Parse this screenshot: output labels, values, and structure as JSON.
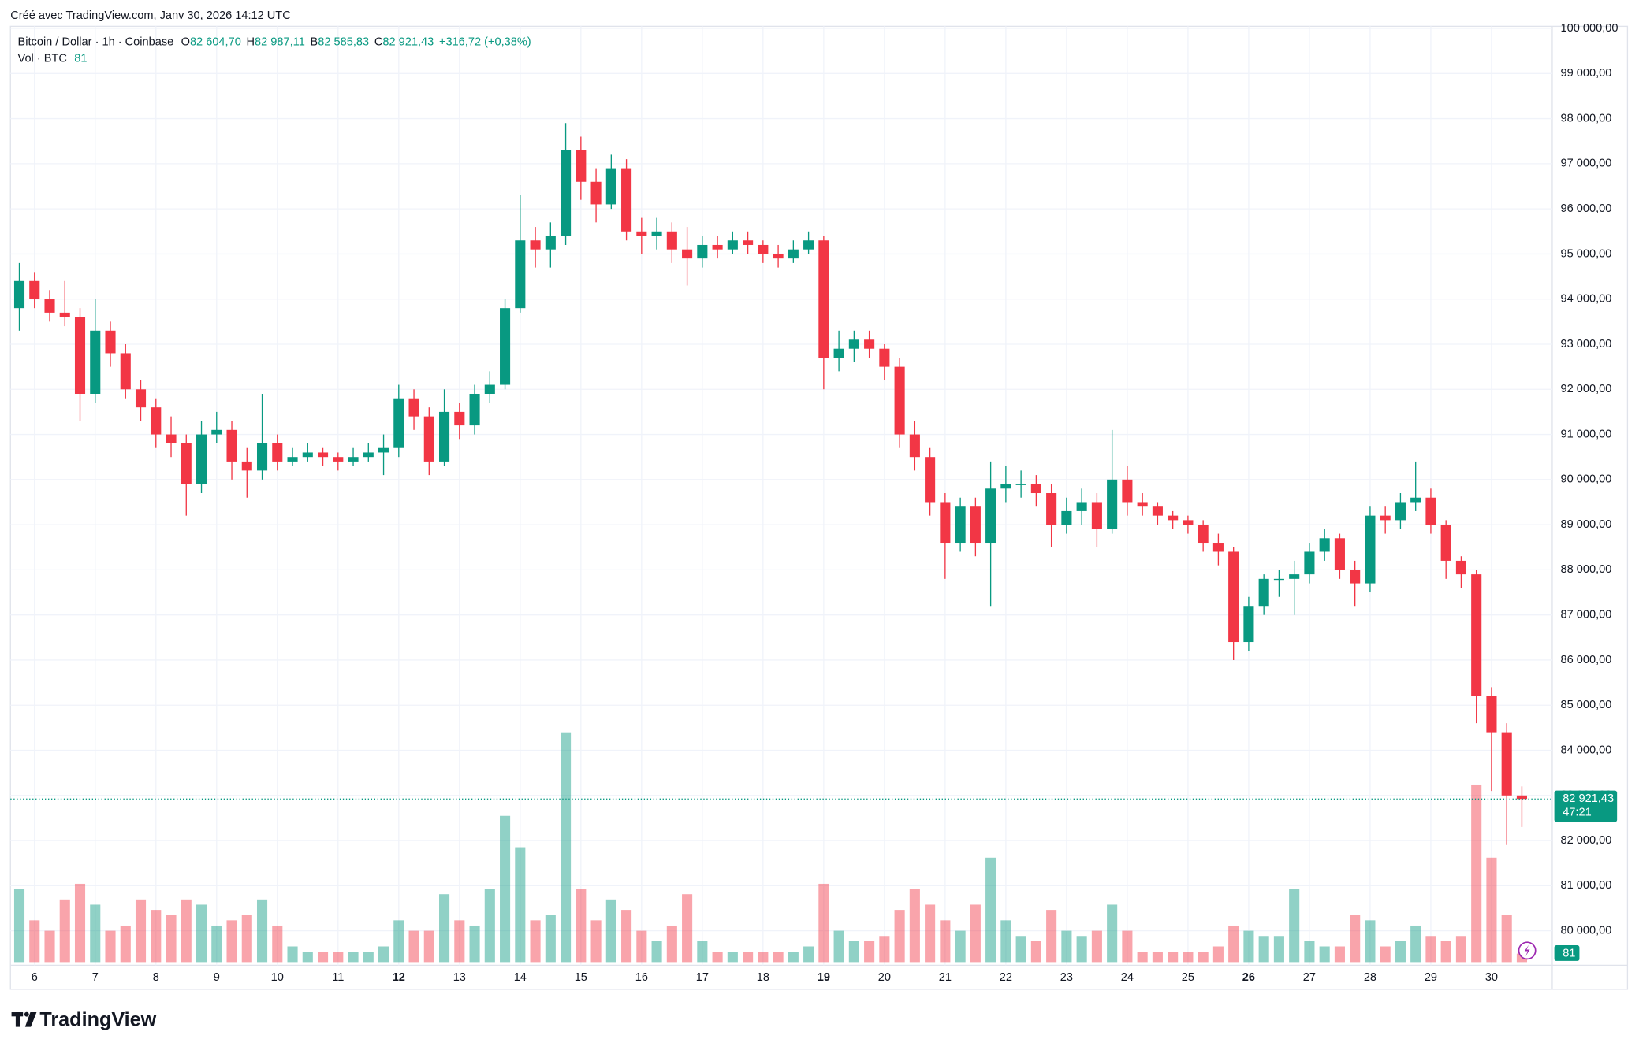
{
  "header": "Créé avec TradingView.com, Janv 30, 2026 14:12 UTC",
  "chart_data": {
    "type": "candlestick",
    "legend": {
      "symbol": "Bitcoin / Dollar · 1h · Coinbase",
      "open_label": "O",
      "open": "82 604,70",
      "high_label": "H",
      "high": "82 987,11",
      "low_label": "B",
      "low": "82 585,83",
      "close_label": "C",
      "close": "82 921,43",
      "change": "+316,72 (+0,38%)",
      "volume_label": "Vol · BTC"
    },
    "up_color": "#089981",
    "down_color": "#f23645",
    "grid": true,
    "xlim": [
      5.604,
      31.0
    ],
    "xticks": [
      6,
      7,
      8,
      9,
      10,
      11,
      12,
      13,
      14,
      15,
      16,
      17,
      18,
      19,
      20,
      21,
      22,
      23,
      24,
      25,
      26,
      27,
      28,
      29,
      30
    ],
    "bold_xticks": [
      12,
      19,
      26
    ],
    "ylim": [
      79306,
      100046
    ],
    "yticks": [
      {
        "value": 80000,
        "label": "80 000,00"
      },
      {
        "value": 81000,
        "label": "81 000,00"
      },
      {
        "value": 82000,
        "label": "82 000,00"
      },
      {
        "value": 83000,
        "label": "83 000,00"
      },
      {
        "value": 84000,
        "label": "84 000,00"
      },
      {
        "value": 85000,
        "label": "85 000,00"
      },
      {
        "value": 86000,
        "label": "86 000,00"
      },
      {
        "value": 87000,
        "label": "87 000,00"
      },
      {
        "value": 88000,
        "label": "88 000,00"
      },
      {
        "value": 89000,
        "label": "89 000,00"
      },
      {
        "value": 90000,
        "label": "90 000,00"
      },
      {
        "value": 91000,
        "label": "91 000,00"
      },
      {
        "value": 92000,
        "label": "92 000,00"
      },
      {
        "value": 93000,
        "label": "93 000,00"
      },
      {
        "value": 94000,
        "label": "94 000,00"
      },
      {
        "value": 95000,
        "label": "95 000,00"
      },
      {
        "value": 96000,
        "label": "96 000,00"
      },
      {
        "value": 97000,
        "label": "97 000,00"
      },
      {
        "value": 98000,
        "label": "98 000,00"
      },
      {
        "value": 99000,
        "label": "99 000,00"
      },
      {
        "value": 100000,
        "label": "100 000,00"
      }
    ],
    "x": [
      5.75,
      6,
      6.25,
      6.5,
      6.75,
      7,
      7.25,
      7.5,
      7.75,
      8,
      8.25,
      8.5,
      8.75,
      9,
      9.25,
      9.5,
      9.75,
      10,
      10.25,
      10.5,
      10.75,
      11,
      11.25,
      11.5,
      11.75,
      12,
      12.25,
      12.5,
      12.75,
      13,
      13.25,
      13.5,
      13.75,
      14,
      14.25,
      14.5,
      14.75,
      15,
      15.25,
      15.5,
      15.75,
      16,
      16.25,
      16.5,
      16.75,
      17,
      17.25,
      17.5,
      17.75,
      18,
      18.25,
      18.5,
      18.75,
      19,
      19.25,
      19.5,
      19.75,
      20,
      20.25,
      20.5,
      20.75,
      21,
      21.25,
      21.5,
      21.75,
      22,
      22.25,
      22.5,
      22.75,
      23,
      23.25,
      23.5,
      23.75,
      24,
      24.25,
      24.5,
      24.75,
      25,
      25.25,
      25.5,
      25.75,
      26,
      26.25,
      26.5,
      26.75,
      27,
      27.25,
      27.5,
      27.75,
      28,
      28.25,
      28.5,
      28.75,
      29,
      29.25,
      29.5,
      29.75,
      30,
      30.25,
      30.5
    ],
    "ohlc": [
      [
        93800,
        94800,
        93300,
        94400
      ],
      [
        94400,
        94600,
        93800,
        94000
      ],
      [
        94000,
        94200,
        93500,
        93700
      ],
      [
        93700,
        94400,
        93400,
        93600
      ],
      [
        93600,
        93800,
        91300,
        91900
      ],
      [
        91900,
        94000,
        91700,
        93300
      ],
      [
        93300,
        93500,
        92500,
        92800
      ],
      [
        92800,
        93000,
        91800,
        92000
      ],
      [
        92000,
        92200,
        91300,
        91600
      ],
      [
        91600,
        91800,
        90700,
        91000
      ],
      [
        91000,
        91400,
        90500,
        90800
      ],
      [
        90800,
        91000,
        89200,
        89900
      ],
      [
        89900,
        91300,
        89700,
        91000
      ],
      [
        91000,
        91500,
        90800,
        91100
      ],
      [
        91100,
        91300,
        90000,
        90400
      ],
      [
        90400,
        90700,
        89600,
        90200
      ],
      [
        90200,
        91900,
        90000,
        90800
      ],
      [
        90800,
        91000,
        90200,
        90400
      ],
      [
        90400,
        90700,
        90300,
        90500
      ],
      [
        90500,
        90800,
        90400,
        90600
      ],
      [
        90600,
        90700,
        90300,
        90500
      ],
      [
        90500,
        90600,
        90200,
        90400
      ],
      [
        90400,
        90700,
        90300,
        90500
      ],
      [
        90500,
        90800,
        90400,
        90600
      ],
      [
        90600,
        91000,
        90100,
        90700
      ],
      [
        90700,
        92100,
        90500,
        91800
      ],
      [
        91800,
        92000,
        91100,
        91400
      ],
      [
        91400,
        91600,
        90100,
        90400
      ],
      [
        90400,
        92000,
        90300,
        91500
      ],
      [
        91500,
        91700,
        90900,
        91200
      ],
      [
        91200,
        92100,
        91000,
        91900
      ],
      [
        91900,
        92400,
        91700,
        92100
      ],
      [
        92100,
        94000,
        92000,
        93800
      ],
      [
        93800,
        96300,
        93700,
        95300
      ],
      [
        95300,
        95600,
        94700,
        95100
      ],
      [
        95100,
        95700,
        94700,
        95400
      ],
      [
        95400,
        97900,
        95200,
        97300
      ],
      [
        97300,
        97600,
        96200,
        96600
      ],
      [
        96600,
        96900,
        95700,
        96100
      ],
      [
        96100,
        97200,
        96000,
        96900
      ],
      [
        96900,
        97100,
        95300,
        95500
      ],
      [
        95500,
        95800,
        95000,
        95400
      ],
      [
        95400,
        95800,
        95100,
        95500
      ],
      [
        95500,
        95700,
        94800,
        95100
      ],
      [
        95100,
        95600,
        94300,
        94900
      ],
      [
        94900,
        95400,
        94700,
        95200
      ],
      [
        95200,
        95400,
        94900,
        95100
      ],
      [
        95100,
        95500,
        95000,
        95300
      ],
      [
        95300,
        95500,
        95000,
        95200
      ],
      [
        95200,
        95300,
        94800,
        95000
      ],
      [
        95000,
        95200,
        94700,
        94900
      ],
      [
        94900,
        95300,
        94800,
        95100
      ],
      [
        95100,
        95500,
        95000,
        95300
      ],
      [
        95300,
        95400,
        92000,
        92700
      ],
      [
        92700,
        93300,
        92400,
        92900
      ],
      [
        92900,
        93300,
        92600,
        93100
      ],
      [
        93100,
        93300,
        92700,
        92900
      ],
      [
        92900,
        93000,
        92200,
        92500
      ],
      [
        92500,
        92700,
        90700,
        91000
      ],
      [
        91000,
        91300,
        90200,
        90500
      ],
      [
        90500,
        90700,
        89200,
        89500
      ],
      [
        89500,
        89700,
        87800,
        88600
      ],
      [
        88600,
        89600,
        88400,
        89400
      ],
      [
        89400,
        89600,
        88300,
        88600
      ],
      [
        88600,
        90400,
        87200,
        89800
      ],
      [
        89800,
        90300,
        89500,
        89900
      ],
      [
        89900,
        90200,
        89600,
        89900
      ],
      [
        89900,
        90100,
        89400,
        89700
      ],
      [
        89700,
        89900,
        88500,
        89000
      ],
      [
        89000,
        89600,
        88800,
        89300
      ],
      [
        89300,
        89800,
        89000,
        89500
      ],
      [
        89500,
        89700,
        88500,
        88900
      ],
      [
        88900,
        91100,
        88800,
        90000
      ],
      [
        90000,
        90300,
        89200,
        89500
      ],
      [
        89500,
        89700,
        89200,
        89400
      ],
      [
        89400,
        89500,
        89000,
        89200
      ],
      [
        89200,
        89300,
        88900,
        89100
      ],
      [
        89100,
        89200,
        88800,
        89000
      ],
      [
        89000,
        89100,
        88400,
        88600
      ],
      [
        88600,
        88800,
        88100,
        88400
      ],
      [
        88400,
        88500,
        86000,
        86400
      ],
      [
        86400,
        87400,
        86200,
        87200
      ],
      [
        87200,
        87900,
        87000,
        87800
      ],
      [
        87800,
        88000,
        87400,
        87800
      ],
      [
        87800,
        88200,
        87000,
        87900
      ],
      [
        87900,
        88600,
        87700,
        88400
      ],
      [
        88400,
        88900,
        88200,
        88700
      ],
      [
        88700,
        88800,
        87800,
        88000
      ],
      [
        88000,
        88200,
        87200,
        87700
      ],
      [
        87700,
        89400,
        87500,
        89200
      ],
      [
        89200,
        89400,
        88800,
        89100
      ],
      [
        89100,
        89700,
        88900,
        89500
      ],
      [
        89500,
        90400,
        89300,
        89600
      ],
      [
        89600,
        89800,
        88800,
        89000
      ],
      [
        89000,
        89100,
        87800,
        88200
      ],
      [
        88200,
        88300,
        87600,
        87900
      ],
      [
        87900,
        88000,
        84600,
        85200
      ],
      [
        85200,
        85400,
        83100,
        84400
      ],
      [
        84400,
        84600,
        81900,
        83000
      ],
      [
        83000,
        83200,
        82300,
        82921.43
      ]
    ],
    "volume": [
      700,
      400,
      300,
      600,
      750,
      550,
      300,
      350,
      600,
      500,
      450,
      600,
      550,
      350,
      400,
      450,
      600,
      350,
      150,
      100,
      100,
      100,
      100,
      100,
      150,
      400,
      300,
      300,
      650,
      400,
      350,
      700,
      1400,
      1100,
      400,
      450,
      2200,
      700,
      400,
      600,
      500,
      300,
      200,
      350,
      650,
      200,
      100,
      100,
      100,
      100,
      100,
      100,
      150,
      750,
      300,
      200,
      200,
      250,
      500,
      700,
      550,
      400,
      300,
      550,
      1000,
      400,
      250,
      200,
      500,
      300,
      250,
      300,
      550,
      300,
      100,
      100,
      100,
      100,
      100,
      150,
      350,
      300,
      250,
      250,
      700,
      200,
      150,
      150,
      450,
      400,
      150,
      200,
      350,
      250,
      200,
      250,
      1700,
      1000,
      450,
      81
    ],
    "volume_lim": [
      0,
      8960
    ],
    "last_price": {
      "value": 82921.43,
      "label": "82 921,43"
    },
    "countdown": "47:21"
  },
  "branding": "TradingView"
}
